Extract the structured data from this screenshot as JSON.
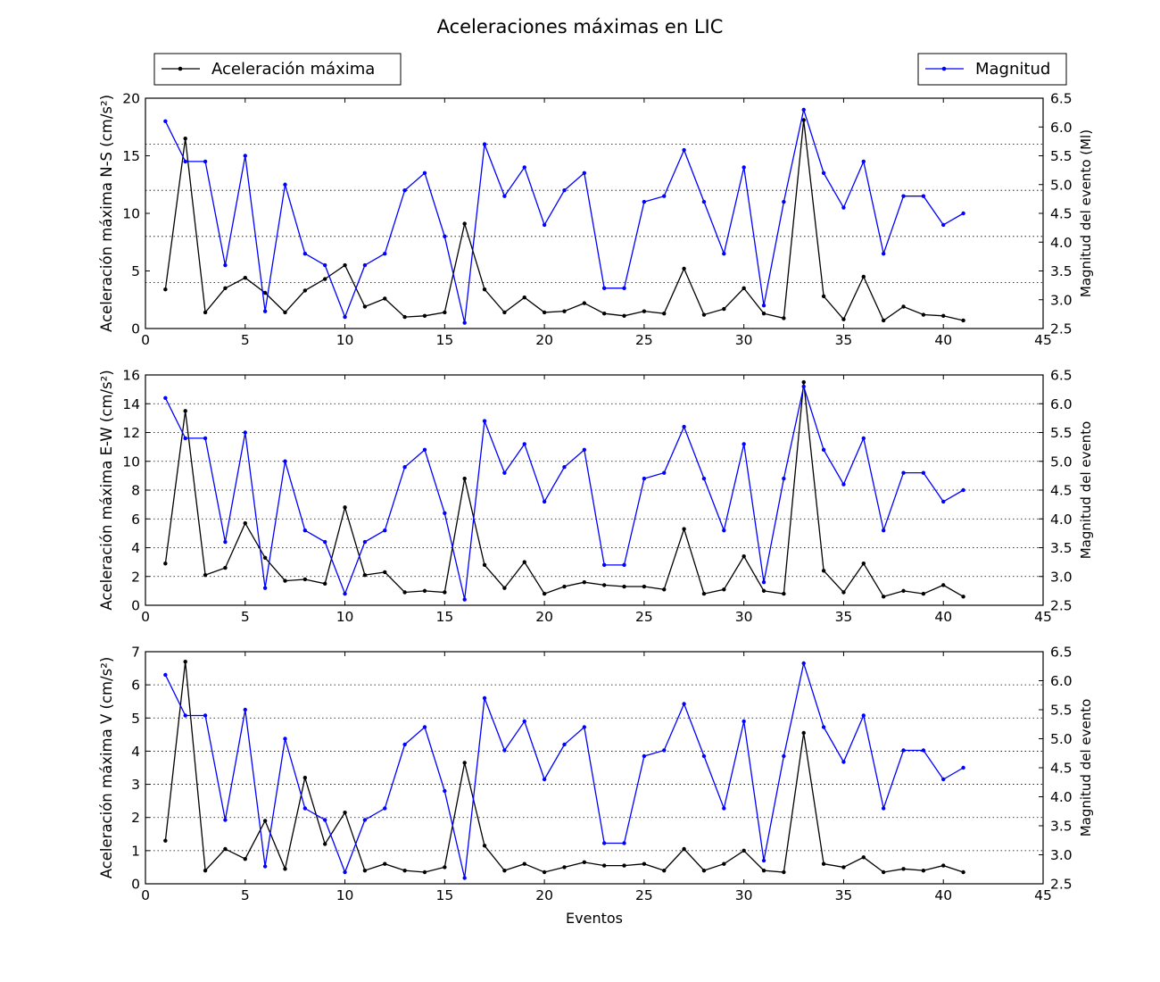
{
  "chart_data": {
    "type": "line",
    "title": "Aceleraciones máximas en LIC",
    "xlabel": "Eventos",
    "xlim": [
      0,
      45
    ],
    "xticks": [
      0,
      5,
      10,
      15,
      20,
      25,
      30,
      35,
      40,
      45
    ],
    "x": [
      1,
      2,
      3,
      4,
      5,
      6,
      7,
      8,
      9,
      10,
      11,
      12,
      13,
      14,
      15,
      16,
      17,
      18,
      19,
      20,
      21,
      22,
      23,
      24,
      25,
      26,
      27,
      28,
      29,
      30,
      31,
      32,
      33,
      34,
      35,
      36,
      37,
      38,
      39,
      40,
      41
    ],
    "legend": {
      "left_label": "Aceleración máxima",
      "right_label": "Magnitud",
      "left_color": "#000000",
      "right_color": "#0000ff"
    },
    "magnitude": [
      6.1,
      5.4,
      5.4,
      3.6,
      5.5,
      2.8,
      5.0,
      3.8,
      3.6,
      2.7,
      3.6,
      3.8,
      4.9,
      5.2,
      4.1,
      2.6,
      5.7,
      4.8,
      5.3,
      4.3,
      4.9,
      5.2,
      3.2,
      3.2,
      4.7,
      4.8,
      5.6,
      4.7,
      3.8,
      5.3,
      2.9,
      4.7,
      6.3,
      5.2,
      4.6,
      5.4,
      3.8,
      4.8,
      4.8,
      4.3,
      4.5
    ],
    "panels": [
      {
        "ylabel": "Aceleración máxima N-S (cm/s²)",
        "y2label": "Magnitud del evento (Ml)",
        "ylim": [
          0,
          20
        ],
        "yticks": [
          0,
          5,
          10,
          15,
          20
        ],
        "y2lim": [
          2.5,
          6.5
        ],
        "y2ticks": [
          "2.5",
          "3.0",
          "3.5",
          "4.0",
          "4.5",
          "5.0",
          "5.5",
          "6.0",
          "6.5"
        ],
        "grid": [
          0.2,
          0.4,
          0.6,
          0.8
        ],
        "values": [
          3.4,
          16.5,
          1.4,
          3.5,
          4.4,
          3.1,
          1.4,
          3.3,
          4.3,
          5.5,
          1.9,
          2.6,
          1.0,
          1.1,
          1.4,
          9.1,
          3.4,
          1.4,
          2.7,
          1.4,
          1.5,
          2.2,
          1.3,
          1.1,
          1.5,
          1.3,
          5.2,
          1.2,
          1.7,
          3.5,
          1.3,
          0.9,
          18.1,
          2.8,
          0.8,
          4.5,
          0.7,
          1.9,
          1.2,
          1.1,
          0.7
        ]
      },
      {
        "ylabel": "Aceleración máxima E-W (cm/s²)",
        "y2label": "Magnitud del evento",
        "ylim": [
          0,
          16
        ],
        "yticks": [
          0,
          2,
          4,
          6,
          8,
          10,
          12,
          14,
          16
        ],
        "y2lim": [
          2.5,
          6.5
        ],
        "y2ticks": [
          "2.5",
          "3.0",
          "3.5",
          "4.0",
          "4.5",
          "5.0",
          "5.5",
          "6.0",
          "6.5"
        ],
        "grid": [
          0.125,
          0.25,
          0.375,
          0.5,
          0.625,
          0.75,
          0.875
        ],
        "values": [
          2.9,
          13.5,
          2.1,
          2.6,
          5.7,
          3.3,
          1.7,
          1.8,
          1.5,
          6.8,
          2.1,
          2.3,
          0.9,
          1.0,
          0.9,
          8.8,
          2.8,
          1.2,
          3.0,
          0.8,
          1.3,
          1.6,
          1.4,
          1.3,
          1.3,
          1.1,
          5.3,
          0.8,
          1.1,
          3.4,
          1.0,
          0.8,
          15.5,
          2.4,
          0.9,
          2.9,
          0.6,
          1.0,
          0.8,
          1.4,
          0.6
        ]
      },
      {
        "ylabel": "Aceleración máxima V (cm/s²)",
        "y2label": "Magnitud del evento",
        "ylim": [
          0,
          7
        ],
        "yticks": [
          0,
          1,
          2,
          3,
          4,
          5,
          6,
          7
        ],
        "y2lim": [
          2.5,
          6.5
        ],
        "y2ticks": [
          "2.5",
          "3.0",
          "3.5",
          "4.0",
          "4.5",
          "5.0",
          "5.5",
          "6.0",
          "6.5"
        ],
        "grid": [
          0.142857,
          0.285714,
          0.428571,
          0.571429,
          0.714286,
          0.857143
        ],
        "values": [
          1.3,
          6.7,
          0.4,
          1.05,
          0.75,
          1.9,
          0.45,
          3.2,
          1.2,
          2.15,
          0.4,
          0.6,
          0.4,
          0.35,
          0.5,
          3.65,
          1.15,
          0.4,
          0.6,
          0.35,
          0.5,
          0.65,
          0.55,
          0.55,
          0.6,
          0.4,
          1.05,
          0.4,
          0.6,
          1.0,
          0.4,
          0.35,
          4.55,
          0.6,
          0.5,
          0.8,
          0.35,
          0.45,
          0.4,
          0.55,
          0.35
        ]
      }
    ]
  }
}
